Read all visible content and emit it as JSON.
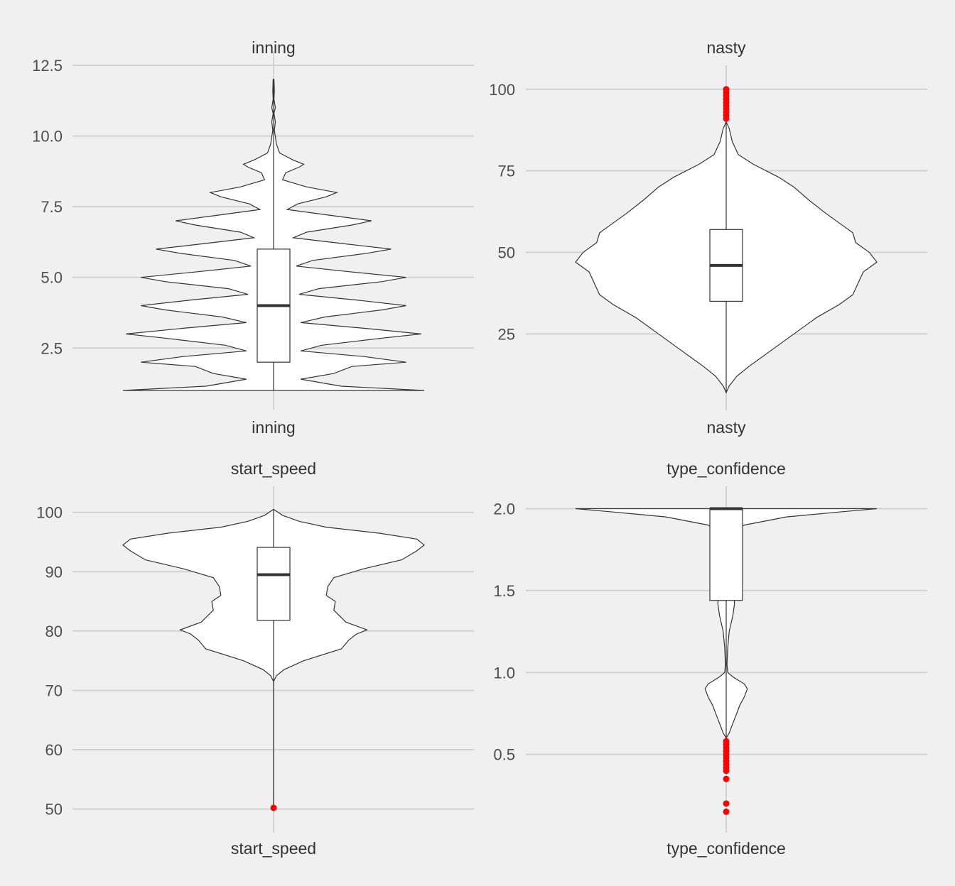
{
  "chart_data": [
    {
      "type": "violin",
      "title": "inning",
      "xlabel": "",
      "ylabel": "",
      "x_tick_label": "inning",
      "ylim": [
        0.95,
        12.5
      ],
      "yticks": [
        2.5,
        5.0,
        7.5,
        10.0,
        12.5
      ],
      "ytick_labels": [
        "2.5",
        "5.0",
        "7.5",
        "10.0",
        "12.5"
      ],
      "grid": true,
      "box": {
        "q1": 2.0,
        "median": 4.0,
        "q3": 6.0,
        "whisker_low": 1.0,
        "whisker_high": 12.0
      },
      "outliers": [],
      "density": [
        [
          1.0,
          1.0
        ],
        [
          1.15,
          0.45
        ],
        [
          1.4,
          0.18
        ],
        [
          1.6,
          0.4
        ],
        [
          1.85,
          0.52
        ],
        [
          2.0,
          0.88
        ],
        [
          2.2,
          0.6
        ],
        [
          2.4,
          0.18
        ],
        [
          2.6,
          0.32
        ],
        [
          2.85,
          0.72
        ],
        [
          3.0,
          0.98
        ],
        [
          3.2,
          0.6
        ],
        [
          3.4,
          0.18
        ],
        [
          3.6,
          0.34
        ],
        [
          3.85,
          0.72
        ],
        [
          4.0,
          0.88
        ],
        [
          4.2,
          0.55
        ],
        [
          4.4,
          0.17
        ],
        [
          4.6,
          0.3
        ],
        [
          4.85,
          0.72
        ],
        [
          5.0,
          0.88
        ],
        [
          5.2,
          0.5
        ],
        [
          5.4,
          0.15
        ],
        [
          5.6,
          0.26
        ],
        [
          5.85,
          0.62
        ],
        [
          6.0,
          0.78
        ],
        [
          6.2,
          0.45
        ],
        [
          6.4,
          0.13
        ],
        [
          6.6,
          0.22
        ],
        [
          6.85,
          0.52
        ],
        [
          7.0,
          0.65
        ],
        [
          7.2,
          0.37
        ],
        [
          7.4,
          0.09
        ],
        [
          7.6,
          0.16
        ],
        [
          7.85,
          0.35
        ],
        [
          8.0,
          0.42
        ],
        [
          8.2,
          0.22
        ],
        [
          8.45,
          0.06
        ],
        [
          8.7,
          0.08
        ],
        [
          8.9,
          0.17
        ],
        [
          9.0,
          0.2
        ],
        [
          9.15,
          0.13
        ],
        [
          9.4,
          0.04
        ],
        [
          9.7,
          0.02
        ],
        [
          10.2,
          0.005
        ],
        [
          10.5,
          0.012
        ],
        [
          10.8,
          0.003
        ],
        [
          11.0,
          0.012
        ],
        [
          11.3,
          0.003
        ],
        [
          11.6,
          0.005
        ],
        [
          12.0,
          0.003
        ]
      ]
    },
    {
      "type": "violin",
      "title": "nasty",
      "xlabel": "",
      "ylabel": "",
      "x_tick_label": "nasty",
      "ylim": [
        7,
        103
      ],
      "yticks": [
        25,
        50,
        75,
        100
      ],
      "ytick_labels": [
        "25",
        "50",
        "75",
        "100"
      ],
      "grid": true,
      "box": {
        "q1": 35,
        "median": 46,
        "q3": 57,
        "whisker_low": 7,
        "whisker_high": 90
      },
      "outliers": [
        91,
        92,
        93,
        94,
        95,
        96,
        97,
        98,
        99,
        100
      ],
      "density": [
        [
          7,
          0.0
        ],
        [
          9,
          0.02
        ],
        [
          12,
          0.07
        ],
        [
          15,
          0.15
        ],
        [
          20,
          0.3
        ],
        [
          25,
          0.45
        ],
        [
          30,
          0.6
        ],
        [
          34,
          0.75
        ],
        [
          37,
          0.84
        ],
        [
          41,
          0.88
        ],
        [
          44,
          0.91
        ],
        [
          47,
          1.0
        ],
        [
          50,
          0.95
        ],
        [
          53,
          0.86
        ],
        [
          56,
          0.84
        ],
        [
          58,
          0.78
        ],
        [
          62,
          0.66
        ],
        [
          66,
          0.55
        ],
        [
          70,
          0.45
        ],
        [
          73,
          0.35
        ],
        [
          77,
          0.18
        ],
        [
          80,
          0.08
        ],
        [
          84,
          0.04
        ],
        [
          88,
          0.02
        ],
        [
          90,
          0.0
        ]
      ]
    },
    {
      "type": "violin",
      "title": "start_speed",
      "xlabel": "",
      "ylabel": "",
      "x_tick_label": "start_speed",
      "ylim": [
        49,
        102
      ],
      "yticks": [
        50,
        60,
        70,
        80,
        90,
        100
      ],
      "ytick_labels": [
        "50",
        "60",
        "70",
        "80",
        "90",
        "100"
      ],
      "grid": true,
      "box": {
        "q1": 81.8,
        "median": 89.5,
        "q3": 94.1,
        "whisker_low": 71.5,
        "whisker_high": 100.5
      },
      "outliers": [
        50.2
      ],
      "density": [
        [
          50.2,
          0.0
        ],
        [
          71.5,
          0.0
        ],
        [
          72.5,
          0.02
        ],
        [
          73.5,
          0.07
        ],
        [
          75,
          0.2
        ],
        [
          77,
          0.45
        ],
        [
          78.5,
          0.5
        ],
        [
          79.5,
          0.55
        ],
        [
          80.2,
          0.62
        ],
        [
          81.5,
          0.48
        ],
        [
          83.5,
          0.4
        ],
        [
          85,
          0.41
        ],
        [
          86,
          0.35
        ],
        [
          87.5,
          0.36
        ],
        [
          89,
          0.4
        ],
        [
          90.5,
          0.6
        ],
        [
          92,
          0.85
        ],
        [
          93.5,
          0.95
        ],
        [
          94.5,
          1.0
        ],
        [
          95.5,
          0.95
        ],
        [
          96.5,
          0.7
        ],
        [
          97.5,
          0.35
        ],
        [
          98.5,
          0.17
        ],
        [
          99.5,
          0.06
        ],
        [
          100.5,
          0.0
        ]
      ]
    },
    {
      "type": "violin",
      "title": "type_confidence",
      "xlabel": "",
      "ylabel": "",
      "x_tick_label": "type_confidence",
      "ylim": [
        0.13,
        2.05
      ],
      "yticks": [
        0.5,
        1.0,
        1.5,
        2.0
      ],
      "ytick_labels": [
        "0.5",
        "1.0",
        "1.5",
        "2.0"
      ],
      "grid": true,
      "box": {
        "q1": 1.44,
        "median": 2.0,
        "q3": 2.0,
        "whisker_low": 0.6,
        "whisker_high": 2.0
      },
      "outliers": [
        0.15,
        0.2,
        0.35,
        0.4,
        0.42,
        0.44,
        0.46,
        0.48,
        0.5,
        0.52,
        0.54,
        0.56,
        0.58
      ],
      "density": [
        [
          0.6,
          0.0
        ],
        [
          0.63,
          0.02
        ],
        [
          0.68,
          0.04
        ],
        [
          0.75,
          0.07
        ],
        [
          0.8,
          0.09
        ],
        [
          0.85,
          0.12
        ],
        [
          0.9,
          0.14
        ],
        [
          0.93,
          0.12
        ],
        [
          0.97,
          0.05
        ],
        [
          1.0,
          0.01
        ],
        [
          1.05,
          0.005
        ],
        [
          1.15,
          0.01
        ],
        [
          1.25,
          0.02
        ],
        [
          1.35,
          0.045
        ],
        [
          1.42,
          0.055
        ],
        [
          1.55,
          0.045
        ],
        [
          1.7,
          0.03
        ],
        [
          1.85,
          0.035
        ],
        [
          1.9,
          0.12
        ],
        [
          1.95,
          0.4
        ],
        [
          1.98,
          0.75
        ],
        [
          2.0,
          1.0
        ]
      ]
    }
  ]
}
